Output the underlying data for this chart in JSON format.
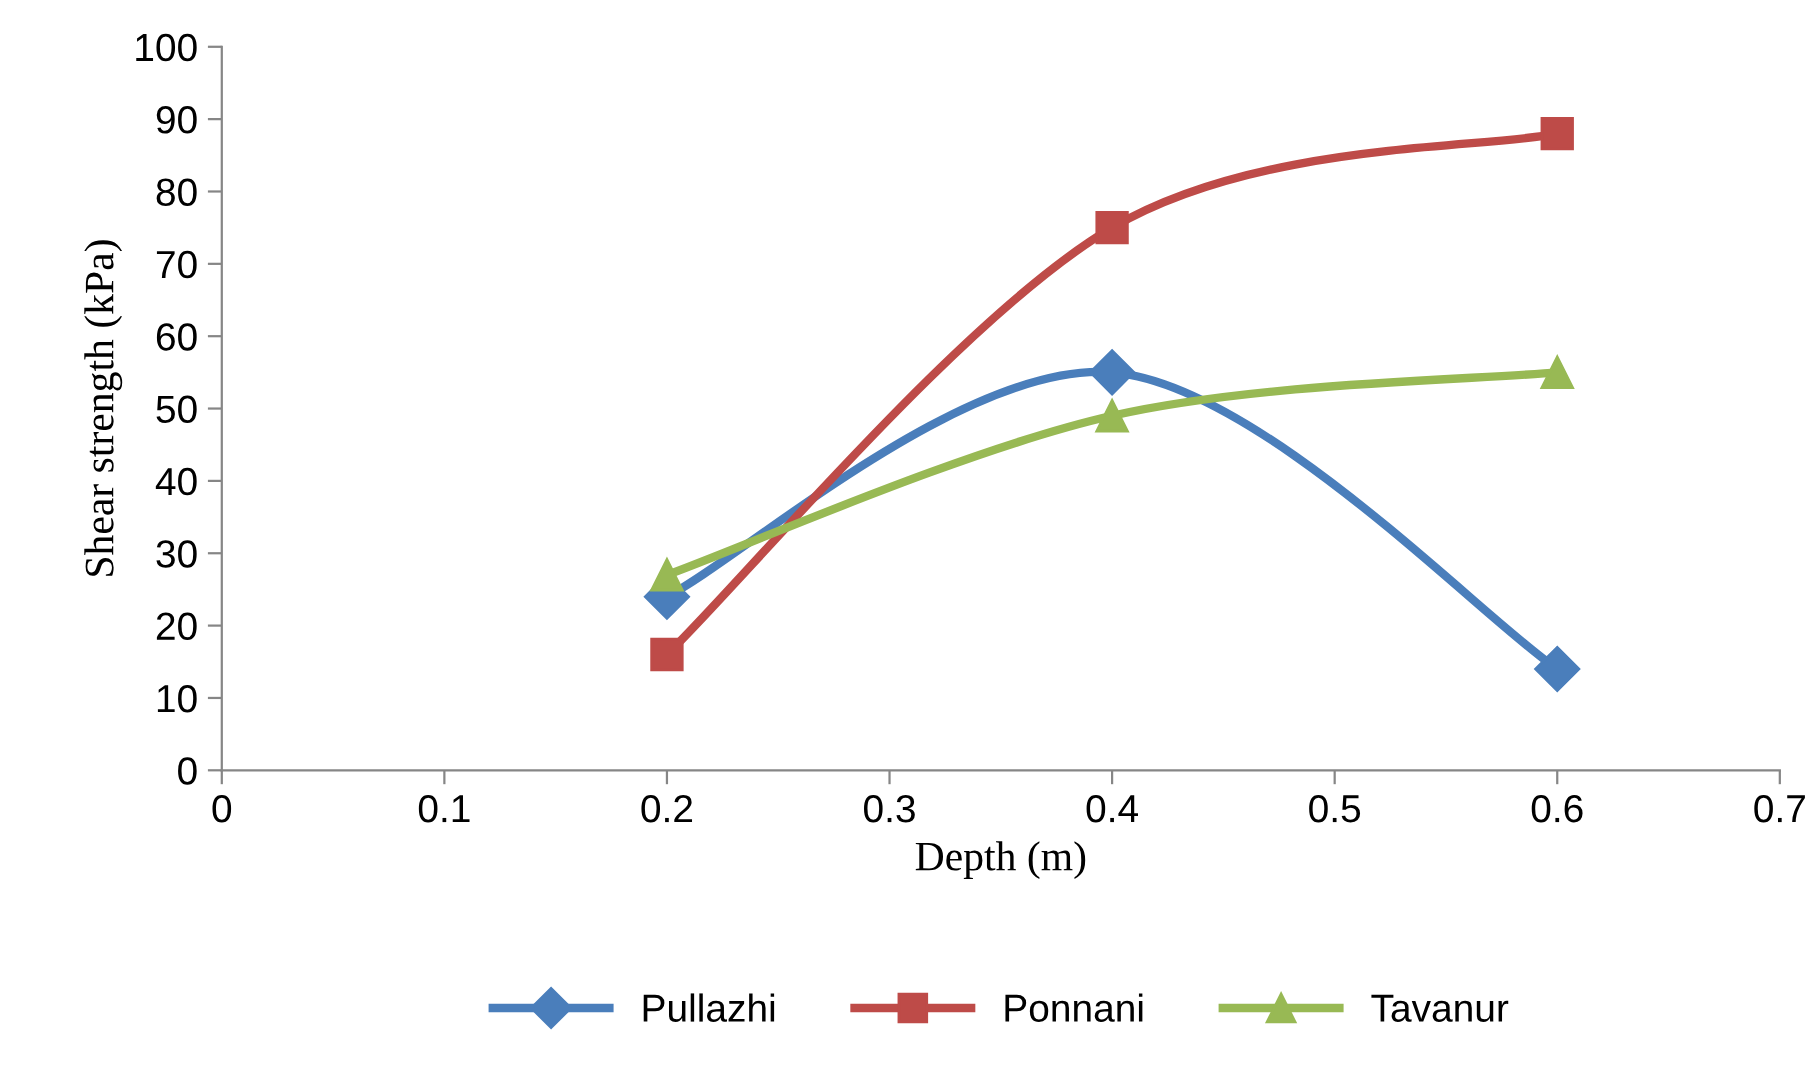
{
  "chart_data": {
    "type": "line",
    "xlabel": "Depth (m)",
    "ylabel": "Shear strength (kPa)",
    "x": [
      0.2,
      0.4,
      0.6
    ],
    "series": [
      {
        "name": "Pullazhi",
        "color": "#4a7ebb",
        "marker": "diamond",
        "values": [
          24,
          55,
          14
        ]
      },
      {
        "name": "Ponnani",
        "color": "#be4b48",
        "marker": "square",
        "values": [
          16,
          75,
          88
        ]
      },
      {
        "name": "Tavanur",
        "color": "#98b954",
        "marker": "triangle",
        "values": [
          27,
          49,
          55
        ]
      }
    ],
    "xlim": [
      0,
      0.7
    ],
    "xticks": [
      0,
      0.1,
      0.2,
      0.3,
      0.4,
      0.5,
      0.6,
      0.7
    ],
    "ylim": [
      0,
      100
    ],
    "yticks": [
      0,
      10,
      20,
      30,
      40,
      50,
      60,
      70,
      80,
      90,
      100
    ],
    "grid": false,
    "legend": "bottom",
    "line_style": "solid"
  }
}
